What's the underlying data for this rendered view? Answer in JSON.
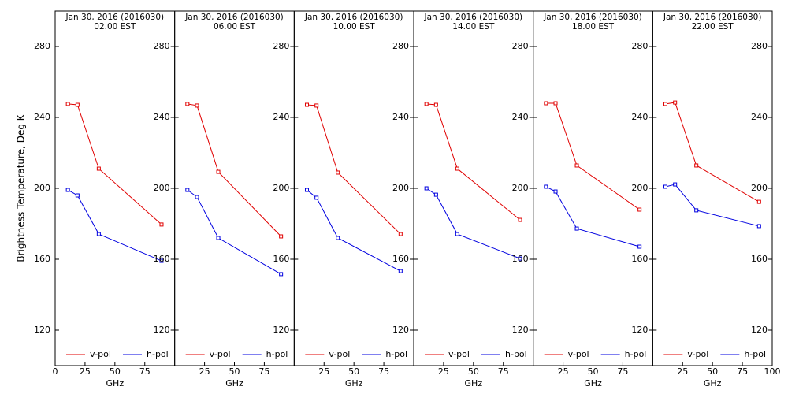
{
  "chart_data": [
    {
      "type": "line",
      "title": "Jan 30, 2016 (2016030)",
      "subtitle": "02.00 EST",
      "xlabel": "GHz",
      "ylabel": "Brightness Temperature, Deg K",
      "x": [
        10.65,
        18.7,
        36.5,
        89.0
      ],
      "series": [
        {
          "name": "v-pol",
          "color": "#e00000",
          "values": [
            247.6,
            247.1,
            211.1,
            179.6
          ]
        },
        {
          "name": "h-pol",
          "color": "#0000e0",
          "values": [
            199.1,
            196.0,
            174.2,
            159.1
          ]
        }
      ],
      "xlim": [
        0,
        100
      ],
      "xticks": [
        0,
        25,
        50,
        75
      ],
      "ylim": [
        100,
        300
      ],
      "yticks": [
        120,
        160,
        200,
        240,
        280
      ]
    },
    {
      "type": "line",
      "title": "Jan 30, 2016 (2016030)",
      "subtitle": "06.00 EST",
      "xlabel": "GHz",
      "x": [
        10.65,
        18.7,
        36.5,
        89.0
      ],
      "series": [
        {
          "name": "v-pol",
          "color": "#e00000",
          "values": [
            247.6,
            246.7,
            209.3,
            172.9
          ]
        },
        {
          "name": "h-pol",
          "color": "#0000e0",
          "values": [
            199.1,
            195.1,
            172.0,
            151.6
          ]
        }
      ],
      "xlim": [
        0,
        100
      ],
      "xticks": [
        25,
        50,
        75
      ],
      "ylim": [
        100,
        300
      ],
      "yticks": [
        120,
        160,
        200,
        240,
        280
      ]
    },
    {
      "type": "line",
      "title": "Jan 30, 2016 (2016030)",
      "subtitle": "10.00 EST",
      "xlabel": "GHz",
      "x": [
        10.65,
        18.7,
        36.5,
        89.0
      ],
      "series": [
        {
          "name": "v-pol",
          "color": "#e00000",
          "values": [
            247.1,
            246.7,
            208.9,
            174.2
          ]
        },
        {
          "name": "h-pol",
          "color": "#0000e0",
          "values": [
            199.1,
            194.7,
            172.0,
            153.3
          ]
        }
      ],
      "xlim": [
        0,
        100
      ],
      "xticks": [
        25,
        50,
        75
      ],
      "ylim": [
        100,
        300
      ],
      "yticks": [
        120,
        160,
        200,
        240,
        280
      ]
    },
    {
      "type": "line",
      "title": "Jan 30, 2016 (2016030)",
      "subtitle": "14.00 EST",
      "xlabel": "GHz",
      "x": [
        10.65,
        18.7,
        36.5,
        89.0
      ],
      "series": [
        {
          "name": "v-pol",
          "color": "#e00000",
          "values": [
            247.6,
            247.1,
            211.1,
            182.2
          ]
        },
        {
          "name": "h-pol",
          "color": "#0000e0",
          "values": [
            200.0,
            196.4,
            174.2,
            160.4
          ]
        }
      ],
      "xlim": [
        0,
        100
      ],
      "xticks": [
        25,
        50,
        75
      ],
      "ylim": [
        100,
        300
      ],
      "yticks": [
        120,
        160,
        200,
        240,
        280
      ]
    },
    {
      "type": "line",
      "title": "Jan 30, 2016 (2016030)",
      "subtitle": "18.00 EST",
      "xlabel": "GHz",
      "x": [
        10.65,
        18.7,
        36.5,
        89.0
      ],
      "series": [
        {
          "name": "v-pol",
          "color": "#e00000",
          "values": [
            248.0,
            248.0,
            212.9,
            188.0
          ]
        },
        {
          "name": "h-pol",
          "color": "#0000e0",
          "values": [
            200.9,
            198.2,
            177.3,
            167.1
          ]
        }
      ],
      "xlim": [
        0,
        100
      ],
      "xticks": [
        25,
        50,
        75
      ],
      "ylim": [
        100,
        300
      ],
      "yticks": [
        120,
        160,
        200,
        240,
        280
      ]
    },
    {
      "type": "line",
      "title": "Jan 30, 2016 (2016030)",
      "subtitle": "22.00 EST",
      "xlabel": "GHz",
      "x": [
        10.65,
        18.7,
        36.5,
        89.0
      ],
      "series": [
        {
          "name": "v-pol",
          "color": "#e00000",
          "values": [
            247.6,
            248.4,
            212.9,
            192.4
          ]
        },
        {
          "name": "h-pol",
          "color": "#0000e0",
          "values": [
            200.9,
            202.2,
            187.6,
            178.7
          ]
        }
      ],
      "xlim": [
        0,
        100
      ],
      "xticks": [
        25,
        50,
        75,
        100
      ],
      "ylim": [
        100,
        300
      ],
      "yticks": [
        120,
        160,
        200,
        240,
        280
      ]
    }
  ]
}
